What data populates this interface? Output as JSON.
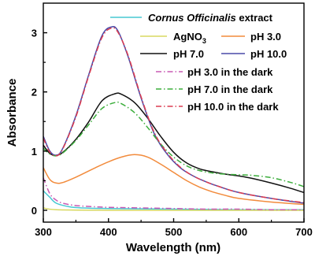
{
  "chart_data": {
    "type": "line",
    "xlabel": "Wavelength (nm)",
    "ylabel": "Absorbance",
    "xlim": [
      300,
      700
    ],
    "ylim": [
      -0.2,
      3.5
    ],
    "xticks": [
      300,
      400,
      500,
      600,
      700
    ],
    "yticks": [
      0,
      1,
      2,
      3
    ],
    "legend_position": "top-right",
    "legend_columns": {
      "col1": [
        "Cornus Officinalis extract",
        "AgNO3",
        "pH 7.0"
      ],
      "col2": [
        "pH 3.0",
        "pH 10.0"
      ],
      "full": [
        "pH 3.0 in the dark",
        "pH 7.0 in the dark",
        "pH 10.0 in the dark"
      ]
    },
    "series": [
      {
        "name": "Cornus Officinalis extract",
        "label_main": "Cornus Officinalis",
        "label_rest": " extract",
        "color": "#46c8d2",
        "dash": "solid",
        "x": [
          300,
          310,
          320,
          340,
          360,
          400,
          500,
          600,
          700
        ],
        "y": [
          0.33,
          0.22,
          0.12,
          0.06,
          0.04,
          0.03,
          0.02,
          0.01,
          0.01
        ]
      },
      {
        "name": "AgNO3",
        "label_main": "AgNO",
        "label_sub": "3",
        "color": "#d8d860",
        "dash": "solid",
        "x": [
          300,
          320,
          400,
          500,
          600,
          700
        ],
        "y": [
          0.04,
          0.01,
          0.0,
          0.0,
          0.0,
          0.0
        ]
      },
      {
        "name": "pH 3.0",
        "color": "#f28b3c",
        "dash": "solid",
        "x": [
          300,
          310,
          320,
          330,
          350,
          380,
          400,
          420,
          440,
          460,
          480,
          500,
          520,
          540,
          560,
          580,
          600,
          650,
          700
        ],
        "y": [
          0.72,
          0.52,
          0.46,
          0.47,
          0.56,
          0.72,
          0.82,
          0.9,
          0.94,
          0.9,
          0.78,
          0.64,
          0.5,
          0.39,
          0.31,
          0.25,
          0.2,
          0.14,
          0.1
        ]
      },
      {
        "name": "pH 7.0",
        "color": "#111111",
        "dash": "solid",
        "x": [
          300,
          310,
          320,
          330,
          350,
          370,
          390,
          410,
          420,
          440,
          460,
          480,
          500,
          520,
          540,
          560,
          580,
          600,
          620,
          650,
          680,
          700
        ],
        "y": [
          1.1,
          0.96,
          0.93,
          0.98,
          1.2,
          1.5,
          1.85,
          1.97,
          1.96,
          1.82,
          1.56,
          1.25,
          0.98,
          0.8,
          0.7,
          0.65,
          0.61,
          0.58,
          0.54,
          0.46,
          0.37,
          0.3
        ]
      },
      {
        "name": "pH 10.0",
        "color": "#4a4aa8",
        "dash": "solid",
        "x": [
          300,
          310,
          320,
          330,
          350,
          370,
          390,
          405,
          415,
          430,
          450,
          470,
          490,
          510,
          530,
          550,
          570,
          600,
          650,
          700
        ],
        "y": [
          1.25,
          1.0,
          0.93,
          1.05,
          1.6,
          2.3,
          2.95,
          3.1,
          3.02,
          2.6,
          1.9,
          1.3,
          0.95,
          0.72,
          0.58,
          0.48,
          0.4,
          0.3,
          0.2,
          0.12
        ]
      },
      {
        "name": "pH 3.0 in the dark",
        "color": "#c85ab4",
        "dash": "dashdot",
        "x": [
          300,
          310,
          320,
          330,
          350,
          380,
          400,
          450,
          500,
          550,
          600,
          650,
          700
        ],
        "y": [
          0.55,
          0.28,
          0.17,
          0.12,
          0.08,
          0.06,
          0.05,
          0.04,
          0.03,
          0.02,
          0.02,
          0.01,
          0.01
        ]
      },
      {
        "name": "pH 7.0 in the dark",
        "color": "#3cae3c",
        "dash": "dashdot",
        "x": [
          300,
          310,
          320,
          330,
          350,
          370,
          390,
          410,
          420,
          440,
          460,
          480,
          500,
          520,
          540,
          560,
          580,
          600,
          620,
          650,
          680,
          700
        ],
        "y": [
          1.05,
          0.95,
          0.92,
          0.97,
          1.18,
          1.45,
          1.72,
          1.82,
          1.8,
          1.65,
          1.4,
          1.12,
          0.9,
          0.75,
          0.67,
          0.63,
          0.61,
          0.6,
          0.59,
          0.55,
          0.47,
          0.4
        ]
      },
      {
        "name": "pH 10.0 in the dark",
        "color": "#dc3c50",
        "dash": "dashdot",
        "x": [
          300,
          310,
          320,
          330,
          350,
          370,
          390,
          405,
          415,
          430,
          450,
          470,
          490,
          510,
          530,
          550,
          570,
          600,
          650,
          700
        ],
        "y": [
          1.22,
          0.98,
          0.92,
          1.04,
          1.58,
          2.28,
          2.92,
          3.08,
          3.0,
          2.62,
          1.92,
          1.32,
          0.97,
          0.73,
          0.58,
          0.48,
          0.4,
          0.3,
          0.2,
          0.13
        ]
      }
    ]
  }
}
